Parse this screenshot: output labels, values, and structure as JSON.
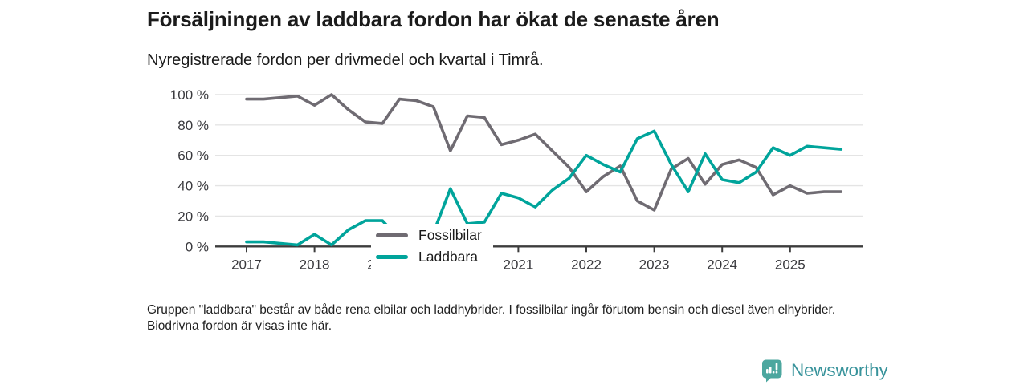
{
  "header": {
    "title": "Försäljningen av laddbara fordon har ökat de senaste åren",
    "subtitle": "Nyregistrerade fordon per drivmedel och kvartal i Timrå."
  },
  "chart_data": {
    "type": "line",
    "unit": "%",
    "frequency": "quarterly",
    "x_start": "2017 Q1",
    "x_end": "2025 Q4",
    "ylim": [
      0,
      100
    ],
    "grid": true,
    "legend_position": "inside-left",
    "y_axis": {
      "ticks": [
        {
          "value": 0,
          "label": "0 %"
        },
        {
          "value": 20,
          "label": "20 %"
        },
        {
          "value": 40,
          "label": "40 %"
        },
        {
          "value": 60,
          "label": "60 %"
        },
        {
          "value": 80,
          "label": "80 %"
        },
        {
          "value": 100,
          "label": "100 %"
        }
      ]
    },
    "x_axis": {
      "ticks": [
        {
          "label": "2017",
          "quarter_index": 0
        },
        {
          "label": "2018",
          "quarter_index": 4
        },
        {
          "label": "2019",
          "quarter_index": 8
        },
        {
          "label": "2020",
          "quarter_index": 12
        },
        {
          "label": "2021",
          "quarter_index": 16
        },
        {
          "label": "2022",
          "quarter_index": 20
        },
        {
          "label": "2023",
          "quarter_index": 24
        },
        {
          "label": "2024",
          "quarter_index": 28
        },
        {
          "label": "2025",
          "quarter_index": 32
        }
      ]
    },
    "series": [
      {
        "name": "Fossilbilar",
        "color": "#6f6b72",
        "values": [
          97,
          97,
          98,
          99,
          93,
          100,
          90,
          82,
          81,
          97,
          96,
          92,
          63,
          86,
          85,
          67,
          70,
          74,
          63,
          52,
          36,
          46,
          53,
          30,
          24,
          51,
          58,
          41,
          54,
          57,
          52,
          34,
          40,
          35,
          36,
          36
        ]
      },
      {
        "name": "Laddbara",
        "color": "#00a49b",
        "values": [
          3,
          3,
          2,
          1,
          8,
          1,
          11,
          17,
          17,
          5,
          5,
          9,
          38,
          15,
          16,
          35,
          32,
          26,
          37,
          45,
          60,
          54,
          49,
          71,
          76,
          54,
          36,
          61,
          44,
          42,
          49,
          65,
          60,
          66,
          65,
          64
        ]
      }
    ]
  },
  "footer": {
    "note": "Gruppen \"laddbara\" består av både rena elbilar och laddhybrider. I fossilbilar ingår förutom bensin och diesel även elhybrider. Biodrivna fordon är visas inte här."
  },
  "branding": {
    "logo_text": "Newsworthy",
    "logo_text_color": "#38939b",
    "badge_color": "#4ca79f"
  }
}
